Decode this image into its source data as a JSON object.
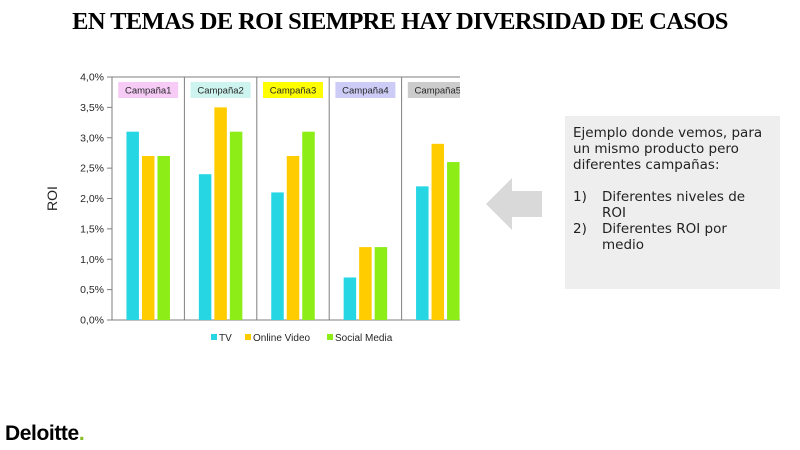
{
  "slide": {
    "title": "EN TEMAS DE ROI SIEMPRE HAY DIVERSIDAD DE CASOS"
  },
  "note": {
    "intro": "Ejemplo donde vemos, para un mismo producto pero diferentes campañas:",
    "items": [
      {
        "num": "1)",
        "text": "Diferentes niveles de ROI"
      },
      {
        "num": "2)",
        "text": "Diferentes ROI por medio"
      }
    ]
  },
  "arrow": {
    "icon": "left-arrow-icon",
    "color": "#d9d9d9"
  },
  "logo": {
    "word": "Deloitte",
    "dot": ".",
    "dot_color": "#86bc25"
  },
  "chart_data": {
    "type": "bar",
    "ylabel": "ROI",
    "ylim": [
      0,
      4
    ],
    "yticks": [
      {
        "value": 0,
        "label": "0,0%"
      },
      {
        "value": 0.5,
        "label": "0,5%"
      },
      {
        "value": 1,
        "label": "1,0%"
      },
      {
        "value": 1.5,
        "label": "1,5%"
      },
      {
        "value": 2,
        "label": "2,0%"
      },
      {
        "value": 2.5,
        "label": "2,5%"
      },
      {
        "value": 3,
        "label": "3,0%"
      },
      {
        "value": 3.5,
        "label": "3,5%"
      },
      {
        "value": 4,
        "label": "4,0%"
      }
    ],
    "categories": [
      "Campaña1",
      "Campaña2",
      "Campaña3",
      "Campaña4",
      "Campaña5"
    ],
    "category_colors": [
      "#f6ccf6",
      "#cdf4ee",
      "#ffff00",
      "#ccccf6",
      "#cccccc"
    ],
    "series": [
      {
        "name": "TV",
        "color": "#26d7e3",
        "values": [
          3.1,
          2.4,
          2.1,
          0.7,
          2.2
        ]
      },
      {
        "name": "Online Video",
        "color": "#ffcc00",
        "values": [
          2.7,
          3.5,
          2.7,
          1.2,
          2.9
        ]
      },
      {
        "name": "Social Media",
        "color": "#8ced17",
        "values": [
          2.7,
          3.1,
          3.1,
          1.2,
          2.6
        ]
      }
    ],
    "grid": false,
    "legend": "bottom"
  }
}
